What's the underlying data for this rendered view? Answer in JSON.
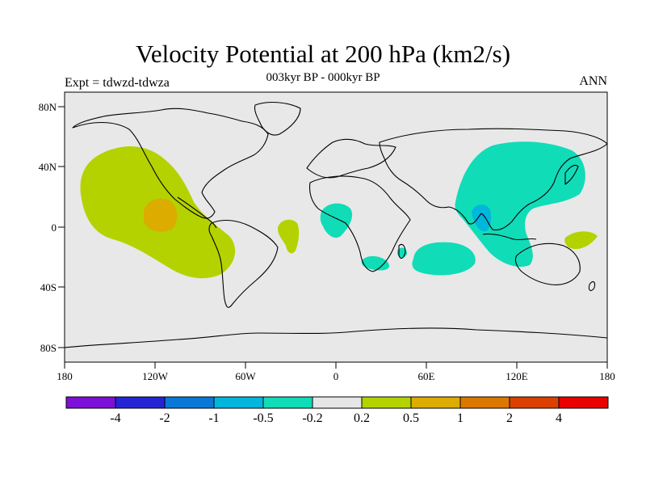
{
  "title": "Velocity Potential at 200 hPa (km2/s)",
  "subtitle": "003kyr BP - 000kyr BP",
  "left_label": "Expt = tdwzd-tdwza",
  "right_label": "ANN",
  "axes": {
    "lat_ticks": [
      "80N",
      "40N",
      "0",
      "40S",
      "80S"
    ],
    "lon_ticks": [
      "180",
      "120W",
      "60W",
      "0",
      "60E",
      "120E",
      "180"
    ]
  },
  "colorbar": {
    "labels": [
      "-4",
      "-2",
      "-1",
      "-0.5",
      "-0.2",
      "0.2",
      "0.5",
      "1",
      "2",
      "4"
    ],
    "colors": [
      "#7d10d8",
      "#2424d4",
      "#0a78d8",
      "#00b6dc",
      "#10dcb8",
      "#e6e6e6",
      "#b4d200",
      "#dcac00",
      "#dc7800",
      "#dc4000",
      "#e80000"
    ]
  },
  "colors": {
    "background": "#e8e8e8",
    "negative_weak": "#10dcb8",
    "negative_mid": "#00b6dc",
    "positive_weak": "#b4d200",
    "positive_mid": "#dcac00"
  }
}
